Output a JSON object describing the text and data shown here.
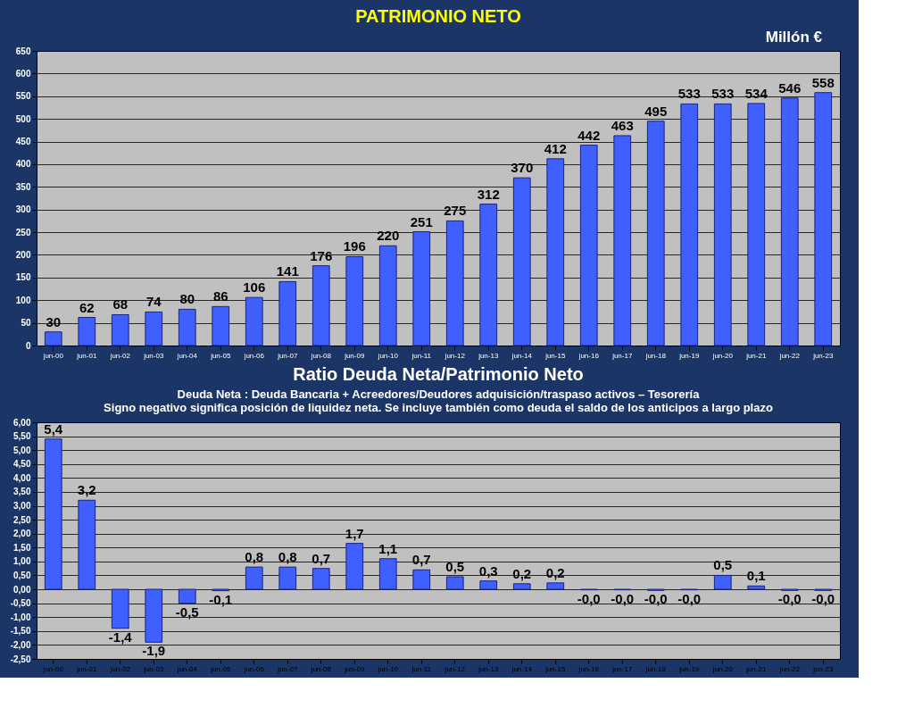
{
  "chart_data": [
    {
      "type": "bar",
      "title": "PATRIMONIO NETO",
      "annotations": [
        "Millón €"
      ],
      "categories": [
        "jun-00",
        "jun-01",
        "jun-02",
        "jun-03",
        "jun-04",
        "jun-05",
        "jun-06",
        "jun-07",
        "jun-08",
        "jun-09",
        "jun-10",
        "jun-11",
        "jun-12",
        "jun-13",
        "jun-14",
        "jun-15",
        "jun-16",
        "jun-17",
        "jun-18",
        "jun-19",
        "jun-20",
        "jun-21",
        "jun-22",
        "jun-23"
      ],
      "values": [
        30,
        62,
        68,
        74,
        80,
        86,
        106,
        141,
        176,
        196,
        220,
        251,
        275,
        312,
        370,
        412,
        442,
        463,
        495,
        533,
        533,
        534,
        546,
        558
      ],
      "color": "#3f5fff",
      "ylim": [
        0,
        650
      ],
      "yticks": [
        0,
        50,
        100,
        150,
        200,
        250,
        300,
        350,
        400,
        450,
        500,
        550,
        600,
        650
      ],
      "grid": "y",
      "data_labels": true
    },
    {
      "type": "bar",
      "title": "Ratio Deuda Neta/Patrimonio Neto",
      "subtitle": "Deuda Neta : Deuda Bancaria + Acreedores/Deudores adquisición/traspaso activos – Tesorería",
      "annotations": [
        "Signo negativo significa posición de liquidez neta. Se incluye también como deuda el saldo de los anticipos a largo plazo"
      ],
      "categories": [
        "jun-00",
        "jun-01",
        "jun-02",
        "jun-03",
        "jun-04",
        "jun-05",
        "jun-06",
        "jun-07",
        "jun-08",
        "jun-09",
        "jun-10",
        "jun-11",
        "jun-12",
        "jun-13",
        "jun-14",
        "jun-15",
        "jun-16",
        "jun-17",
        "jun-18",
        "jun-19",
        "jun-20",
        "jun-21",
        "jun-22",
        "jun-23"
      ],
      "values": [
        5.4,
        3.2,
        -1.4,
        -1.9,
        -0.5,
        -0.05,
        0.8,
        0.8,
        0.75,
        1.65,
        1.1,
        0.7,
        0.45,
        0.3,
        0.2,
        0.23,
        -0.02,
        -0.02,
        -0.04,
        -0.02,
        0.5,
        0.12,
        -0.04,
        -0.04
      ],
      "value_labels": [
        "5,4",
        "3,2",
        "-1,4",
        "-1,9",
        "-0,5",
        "-0,1",
        "0,8",
        "0,8",
        "0,7",
        "1,7",
        "1,1",
        "0,7",
        "0,5",
        "0,3",
        "0,2",
        "0,2",
        "-0,0",
        "-0,0",
        "-0,0",
        "-0,0",
        "0,5",
        "0,1",
        "-0,0",
        "-0,0"
      ],
      "color": "#3f5fff",
      "ylim": [
        -2.5,
        6.0
      ],
      "yticks": [
        {
          "value": -2.5,
          "label": "-2,50"
        },
        {
          "value": -2.0,
          "label": "-2,00"
        },
        {
          "value": -1.5,
          "label": "-1,50"
        },
        {
          "value": -1.0,
          "label": "-1,00"
        },
        {
          "value": -0.5,
          "label": "-0,50"
        },
        {
          "value": 0,
          "label": "0,00"
        },
        {
          "value": 0.5,
          "label": "0,50"
        },
        {
          "value": 1.0,
          "label": "1,00"
        },
        {
          "value": 1.5,
          "label": "1,50"
        },
        {
          "value": 2.0,
          "label": "2,00"
        },
        {
          "value": 2.5,
          "label": "2,50"
        },
        {
          "value": 3.0,
          "label": "3,00"
        },
        {
          "value": 3.5,
          "label": "3,50"
        },
        {
          "value": 4.0,
          "label": "4,00"
        },
        {
          "value": 4.5,
          "label": "4,50"
        },
        {
          "value": 5.0,
          "label": "5,00"
        },
        {
          "value": 5.5,
          "label": "5,50"
        },
        {
          "value": 6.0,
          "label": "6,00"
        }
      ],
      "grid": "y"
    }
  ]
}
